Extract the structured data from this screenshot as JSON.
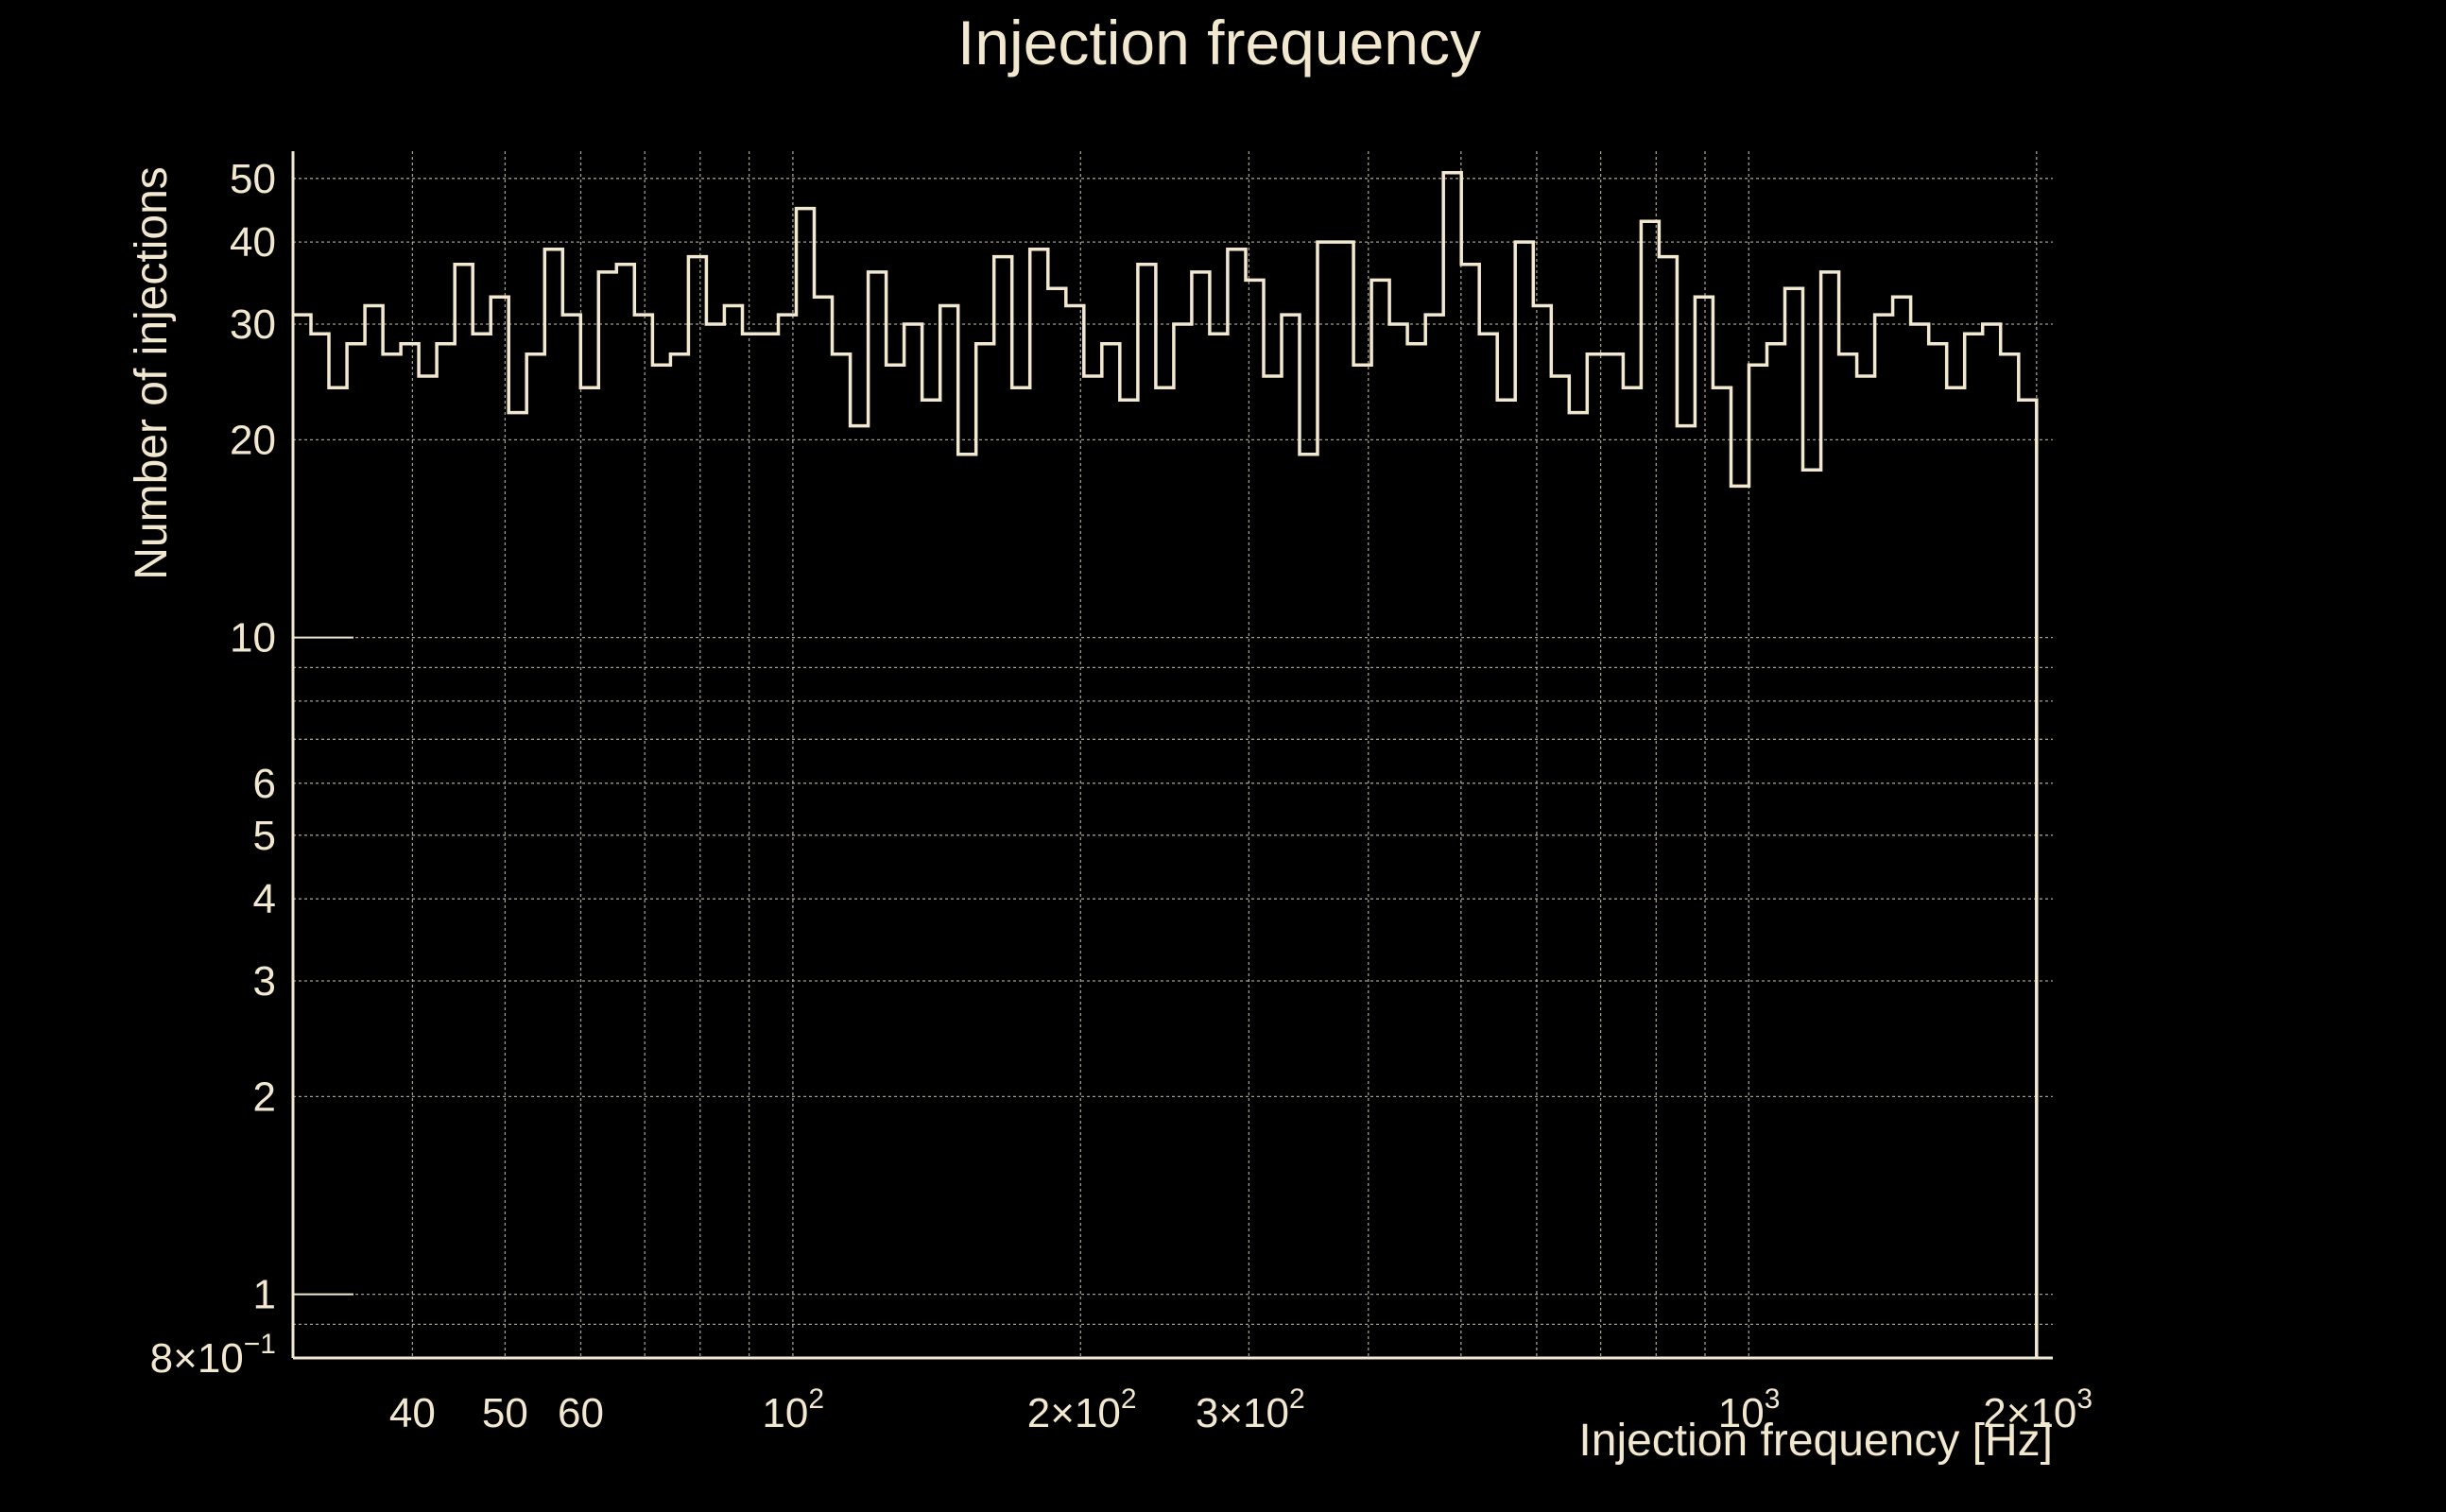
{
  "chart_data": {
    "type": "histogram",
    "title": "Injection frequency",
    "xlabel": "Injection frequency [Hz]",
    "ylabel": "Number of injections",
    "xscale": "log",
    "yscale": "log",
    "xlim": [
      30,
      2080
    ],
    "ylim": [
      0.8,
      55
    ],
    "grid": true,
    "x_ticks": [
      {
        "value": 40,
        "label": "40",
        "exp": ""
      },
      {
        "value": 50,
        "label": "50",
        "exp": ""
      },
      {
        "value": 60,
        "label": "60",
        "exp": ""
      },
      {
        "value": 100,
        "label": "10",
        "exp": "2"
      },
      {
        "value": 200,
        "label": "2×10",
        "exp": "2"
      },
      {
        "value": 300,
        "label": "3×10",
        "exp": "2"
      },
      {
        "value": 1000,
        "label": "10",
        "exp": "3"
      },
      {
        "value": 2000,
        "label": "2×10",
        "exp": "3"
      }
    ],
    "y_ticks": [
      {
        "value": 0.8,
        "label": "8×10",
        "exp": "−1"
      },
      {
        "value": 1,
        "label": "1",
        "exp": ""
      },
      {
        "value": 2,
        "label": "2",
        "exp": ""
      },
      {
        "value": 3,
        "label": "3",
        "exp": ""
      },
      {
        "value": 4,
        "label": "4",
        "exp": ""
      },
      {
        "value": 5,
        "label": "5",
        "exp": ""
      },
      {
        "value": 6,
        "label": "6",
        "exp": ""
      },
      {
        "value": 10,
        "label": "10",
        "exp": ""
      },
      {
        "value": 20,
        "label": "20",
        "exp": ""
      },
      {
        "value": 30,
        "label": "30",
        "exp": ""
      },
      {
        "value": 40,
        "label": "40",
        "exp": ""
      },
      {
        "value": 50,
        "label": "50",
        "exp": ""
      }
    ],
    "x_grid": [
      40,
      50,
      60,
      70,
      80,
      90,
      100,
      200,
      300,
      400,
      500,
      600,
      700,
      800,
      900,
      1000,
      2000
    ],
    "y_grid": [
      0.9,
      1,
      2,
      3,
      4,
      5,
      6,
      7,
      8,
      9,
      10,
      20,
      30,
      40,
      50
    ],
    "bin_range": [
      30,
      2000
    ],
    "counts": [
      31,
      29,
      24,
      28,
      32,
      27,
      28,
      25,
      28,
      37,
      29,
      33,
      22,
      27,
      39,
      31,
      24,
      36,
      37,
      31,
      26,
      27,
      38,
      30,
      32,
      29,
      29,
      31,
      45,
      33,
      27,
      21,
      36,
      26,
      30,
      23,
      32,
      19,
      28,
      38,
      24,
      39,
      34,
      32,
      25,
      28,
      23,
      37,
      24,
      30,
      36,
      29,
      39,
      35,
      25,
      31,
      19,
      40,
      40,
      26,
      35,
      30,
      28,
      31,
      51,
      37,
      29,
      23,
      40,
      32,
      25,
      22,
      27,
      27,
      24,
      43,
      38,
      21,
      33,
      24,
      17,
      26,
      28,
      34,
      18,
      36,
      27,
      25,
      31,
      33,
      30,
      28,
      24,
      29,
      30,
      27,
      23
    ]
  }
}
